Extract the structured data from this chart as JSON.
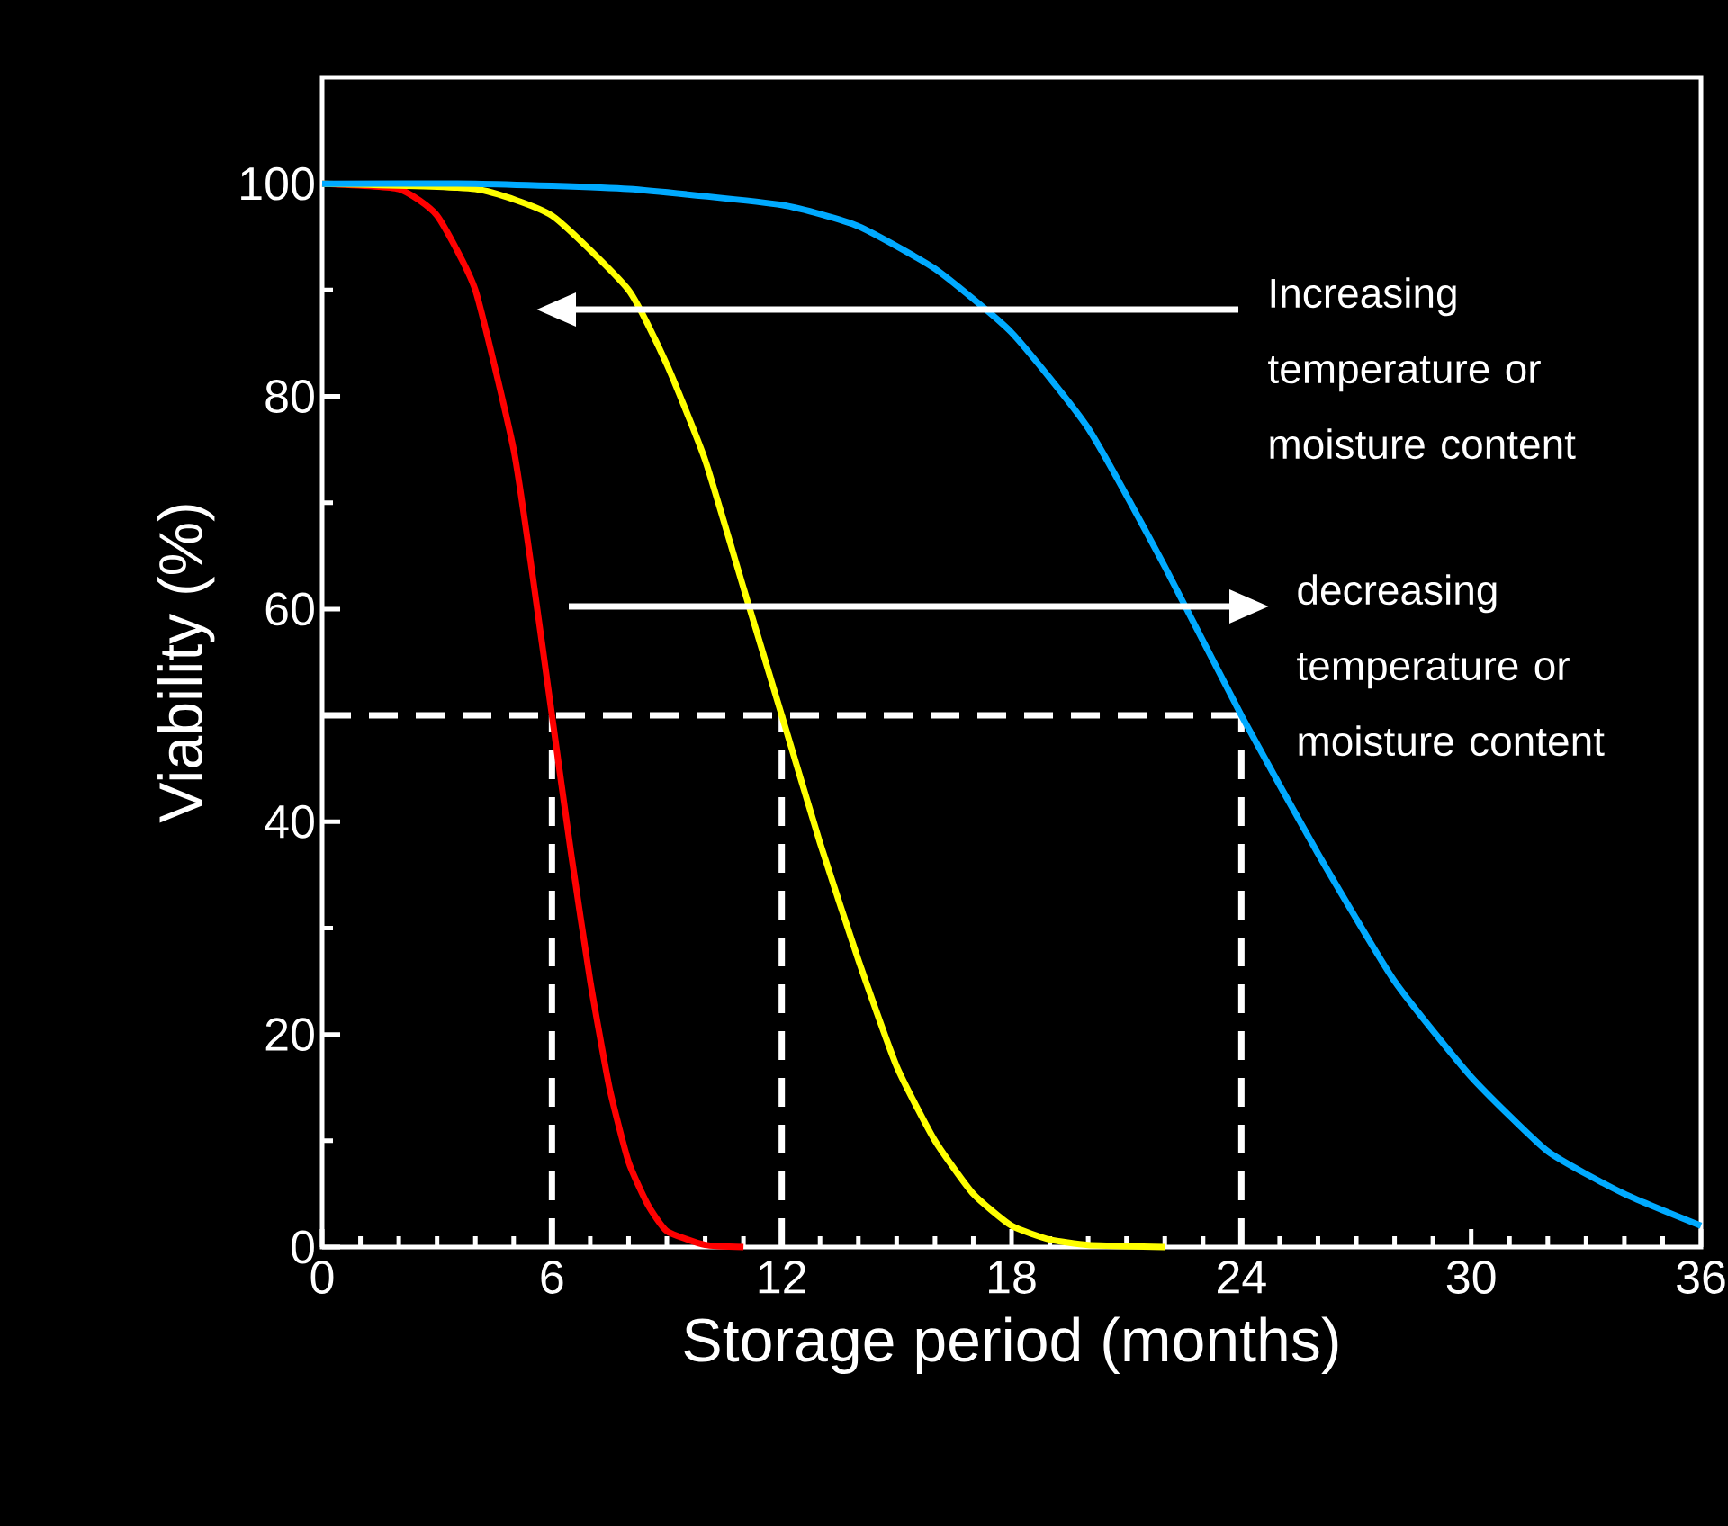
{
  "chart_data": {
    "type": "line",
    "xlabel": "Storage period (months)",
    "ylabel": "Viability (%)",
    "xlim": [
      0,
      36
    ],
    "ylim": [
      0,
      110
    ],
    "xticks": [
      0,
      6,
      12,
      18,
      24,
      30,
      36
    ],
    "yticks": [
      0,
      20,
      40,
      60,
      80,
      100
    ],
    "series": [
      {
        "color": "#ff0000",
        "x": [
          0,
          2,
          3,
          4,
          5,
          5.5,
          6,
          6.5,
          7,
          7.5,
          8,
          8.5,
          9,
          10,
          11
        ],
        "values": [
          100,
          99.5,
          97,
          90,
          75,
          63,
          50,
          37,
          25,
          15,
          8,
          4,
          1.5,
          0.2,
          0
        ]
      },
      {
        "color": "#ffff00",
        "x": [
          0,
          4,
          6,
          8,
          9,
          10,
          11,
          12,
          13,
          14,
          15,
          16,
          17,
          18,
          19,
          20,
          22
        ],
        "values": [
          100,
          99.5,
          97,
          90,
          83,
          74,
          62,
          50,
          38,
          27,
          17,
          10,
          5,
          2,
          0.7,
          0.2,
          0
        ]
      },
      {
        "color": "#00aaff",
        "x": [
          0,
          4,
          8,
          12,
          14,
          16,
          18,
          20,
          22,
          24,
          26,
          28,
          30,
          32,
          34,
          36
        ],
        "values": [
          100,
          100,
          99.5,
          98,
          96,
          92,
          86,
          77,
          64,
          50,
          37,
          25,
          16,
          9,
          5,
          2
        ]
      }
    ],
    "ref_lines": [
      {
        "axis": "y",
        "value": 50,
        "color": "#ffffff",
        "line_style": "dashed"
      },
      {
        "axis": "x",
        "value": 6,
        "color": "#ffffff",
        "line_style": "dashed"
      },
      {
        "axis": "x",
        "value": 12,
        "color": "#ffffff",
        "line_style": "dashed"
      },
      {
        "axis": "x",
        "value": 24,
        "color": "#ffffff",
        "line_style": "dashed"
      }
    ],
    "annotations": [
      "Increasing temperature or moisture content",
      "decreasing temperature or moisture content"
    ]
  }
}
